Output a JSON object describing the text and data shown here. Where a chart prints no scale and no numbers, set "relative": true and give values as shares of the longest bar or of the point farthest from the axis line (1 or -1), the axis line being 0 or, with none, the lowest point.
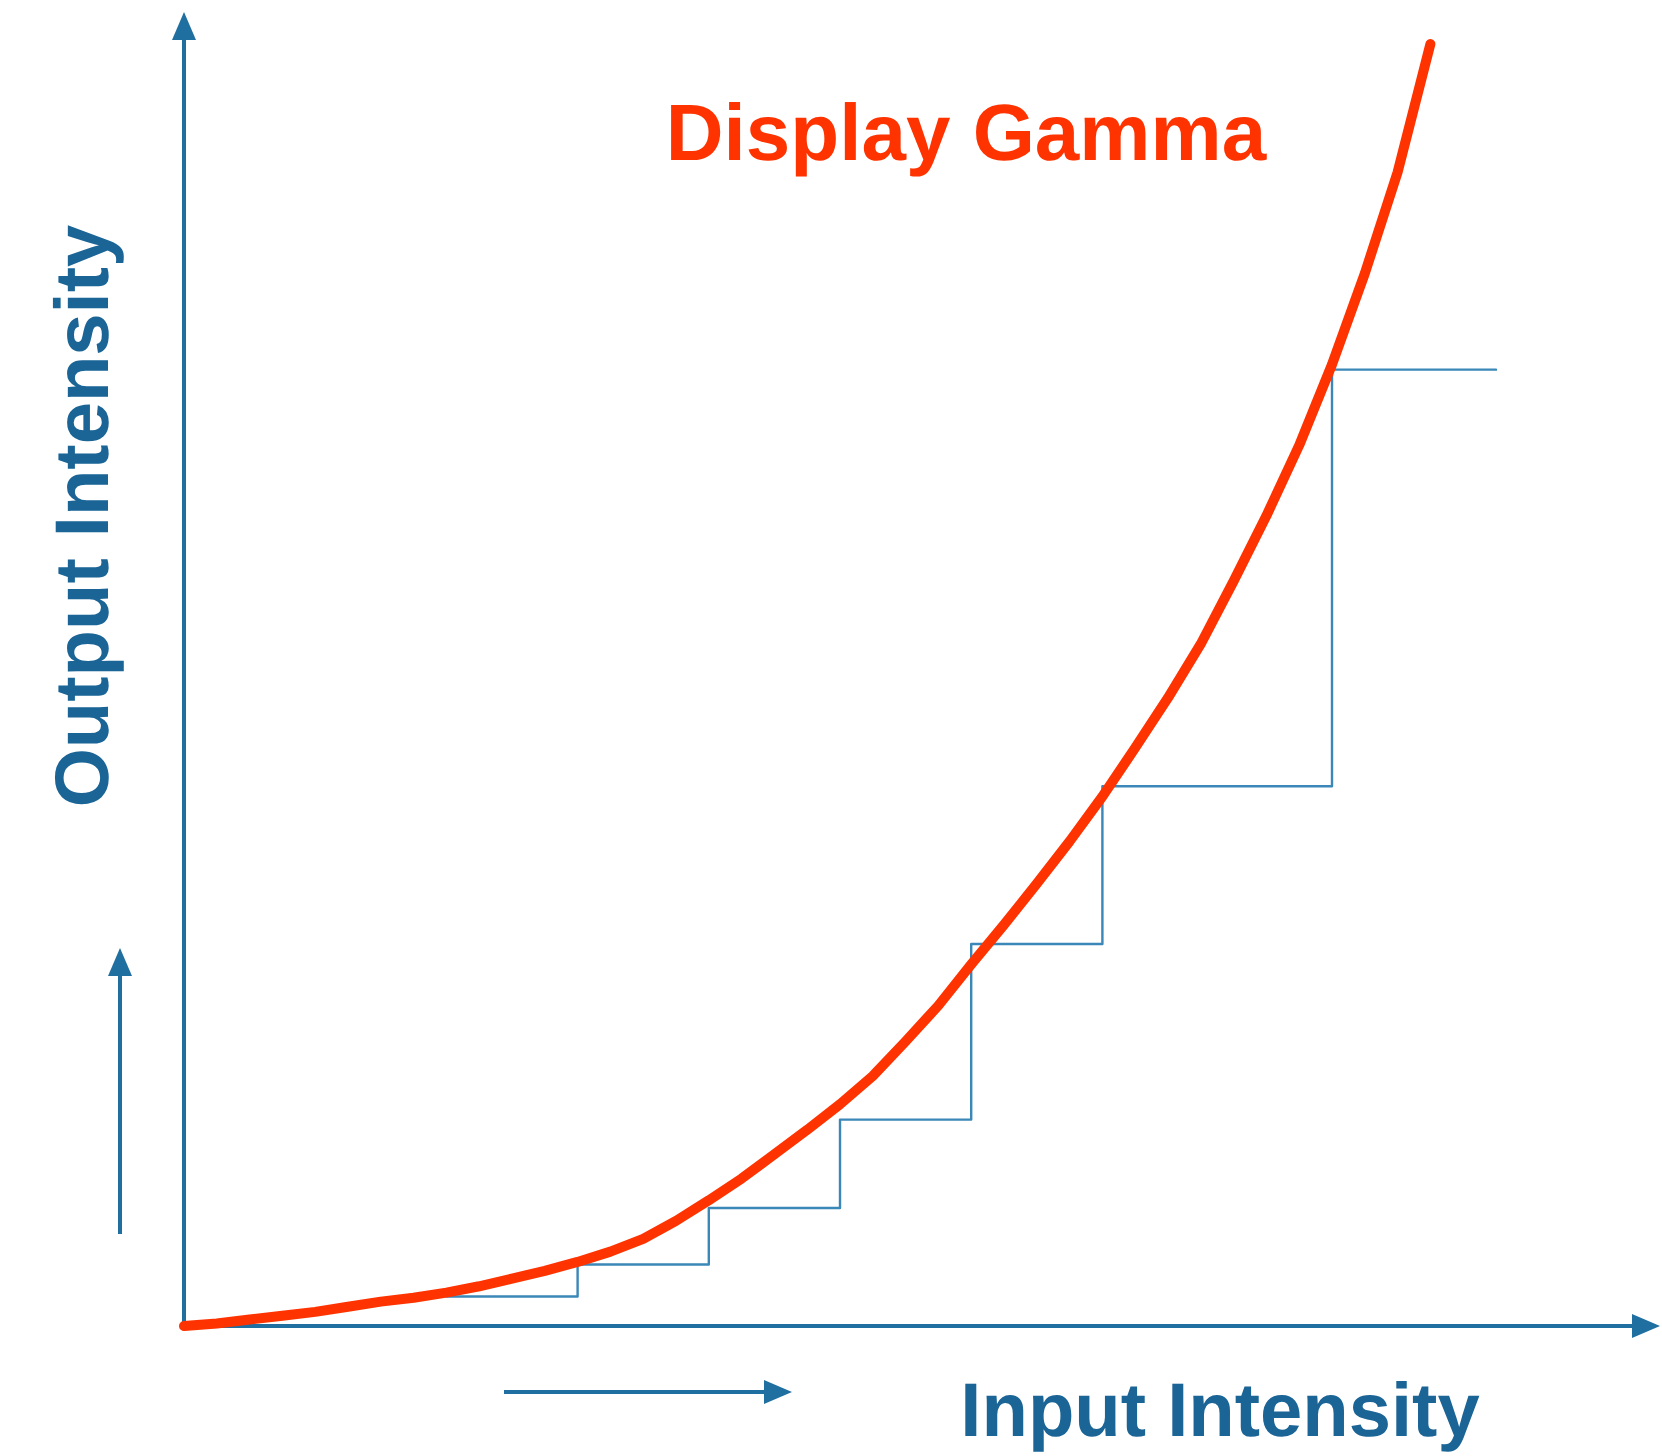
{
  "chart_data": {
    "type": "line",
    "title": "Display Gamma",
    "xlabel": "Input Intensity",
    "ylabel": "Output Intensity",
    "relative": true,
    "categories": [
      null,
      null,
      null,
      null,
      null,
      null,
      null,
      null,
      null,
      null,
      null,
      null,
      null,
      null,
      null,
      null,
      null,
      null,
      null,
      null,
      null,
      null,
      null,
      null,
      null,
      null,
      null,
      null,
      null,
      null,
      null,
      null,
      null,
      null,
      null,
      null,
      null,
      null,
      null,
      null,
      null
    ],
    "series": [
      {
        "color": "#ff3300",
        "values": [
          0,
          0.002,
          0.005,
          0.008,
          0.011,
          0.015,
          0.019,
          0.022,
          0.026,
          0.031,
          0.037,
          0.043,
          0.05,
          0.058,
          0.068,
          0.082,
          0.098,
          0.115,
          0.134,
          0.153,
          0.173,
          0.195,
          0.222,
          0.25,
          0.282,
          0.313,
          0.345,
          0.378,
          0.413,
          0.451,
          0.49,
          0.532,
          0.581,
          0.632,
          0.687,
          0.75,
          0.821,
          0.9,
          1,
          null,
          null
        ]
      },
      {
        "type": "step",
        "color": "#3a87b8",
        "values": [
          null,
          null,
          null,
          null,
          null,
          null,
          null,
          null,
          0.023,
          0.023,
          0.023,
          0.023,
          0.048,
          0.048,
          0.048,
          0.048,
          0.092,
          0.092,
          0.092,
          0.092,
          0.161,
          0.161,
          0.161,
          0.161,
          0.298,
          0.298,
          0.298,
          0.298,
          0.421,
          0.421,
          0.421,
          0.421,
          0.421,
          0.421,
          0.421,
          0.746,
          0.746,
          0.746,
          0.746,
          0.746,
          0.746
        ]
      }
    ]
  }
}
